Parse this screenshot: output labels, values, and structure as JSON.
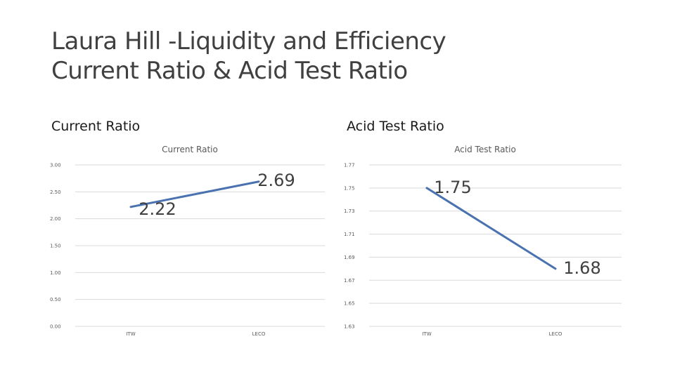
{
  "slide": {
    "title_line1": "Laura Hill -Liquidity and Efficiency",
    "title_line2": "Current Ratio & Acid Test Ratio"
  },
  "sections": {
    "left_heading": "Current Ratio",
    "right_heading": "Acid Test Ratio"
  },
  "colors": {
    "series_line": "#4a72b0",
    "gridline": "#d9d9d9",
    "axis_text": "#595959"
  },
  "chart_data": [
    {
      "type": "line",
      "title": "Current Ratio",
      "categories": [
        "ITW",
        "LECO"
      ],
      "series": [
        {
          "values": [
            2.22,
            2.69
          ]
        }
      ],
      "data_labels": [
        "2.22",
        "2.69"
      ],
      "ylim": [
        0,
        3
      ],
      "yticks": [
        0,
        0.5,
        1,
        1.5,
        2,
        2.5,
        3
      ],
      "ytick_labels": [
        "0.00",
        "0.50",
        "1.00",
        "1.50",
        "2.00",
        "2.50",
        "3.00"
      ],
      "grid": true,
      "legend": "none"
    },
    {
      "type": "line",
      "title": "Acid Test Ratio",
      "categories": [
        "ITW",
        "LECO"
      ],
      "series": [
        {
          "values": [
            1.75,
            1.68
          ]
        }
      ],
      "data_labels": [
        "1.75",
        "1.68"
      ],
      "ylim": [
        1.63,
        1.77
      ],
      "yticks": [
        1.63,
        1.65,
        1.67,
        1.69,
        1.71,
        1.73,
        1.75,
        1.77
      ],
      "ytick_labels": [
        "1.63",
        "1.65",
        "1.67",
        "1.69",
        "1.71",
        "1.73",
        "1.75",
        "1.77"
      ],
      "grid": true,
      "legend": "none"
    }
  ]
}
